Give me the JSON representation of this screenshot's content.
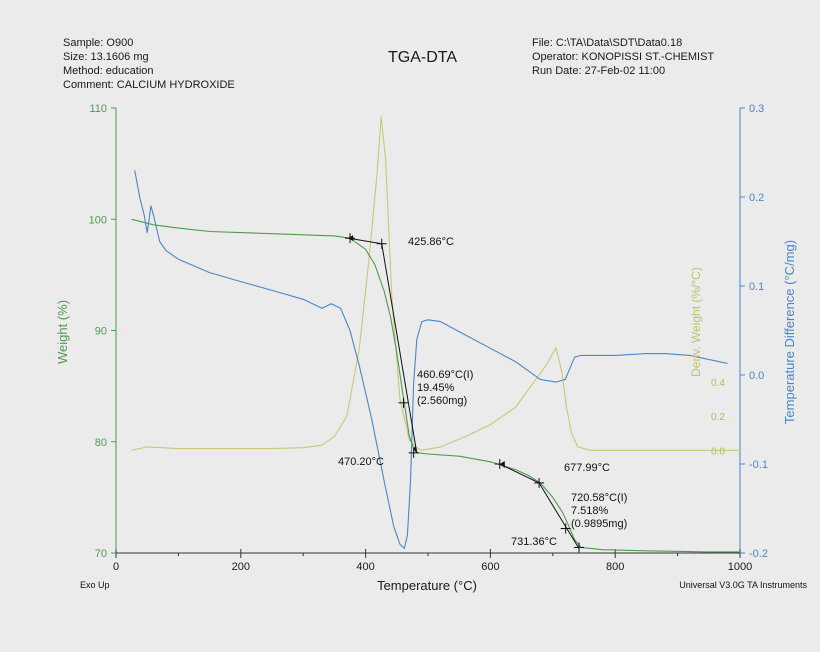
{
  "header": {
    "sample": "Sample: O900",
    "size": "Size:   13.1606 mg",
    "method": "Method: education",
    "comment": "Comment: CALCIUM HYDROXIDE",
    "title": "TGA-DTA",
    "file": "File: C:\\TA\\Data\\SDT\\Data0.18",
    "operator": "Operator: KONOPISSI ST.-CHEMIST",
    "run_date": "Run Date: 27-Feb-02 11:00"
  },
  "footer": {
    "exo_up": "Exo Up",
    "instrument": "Universal V3.0G TA Instruments"
  },
  "colors": {
    "weight": "#4f9a4f",
    "temp_diff": "#4a86c8",
    "deriv_weight": "#c8c878",
    "annotation": "#111111"
  },
  "chart_data": {
    "type": "line",
    "title": "TGA-DTA",
    "xlabel": "Temperature (°C)",
    "ylabel_left": "Weight (%)",
    "ylabel_right": "Temperature Difference (°C/mg)",
    "ylabel_deriv": "Deriv. Weight (%/°C)",
    "xlim": [
      0,
      1000
    ],
    "ylim_left": [
      70,
      110
    ],
    "ylim_right": [
      -0.2,
      0.3
    ],
    "ylim_deriv": [
      -0.6,
      2.0
    ],
    "x_ticks": [
      "0",
      "200",
      "400",
      "600",
      "800",
      "1000"
    ],
    "y_ticks_left": [
      "70",
      "80",
      "90",
      "100",
      "110"
    ],
    "y_ticks_right": [
      "-0.2",
      "-0.1",
      "0.0",
      "0.1",
      "0.2",
      "0.3"
    ],
    "y_ticks_deriv": [
      "0.0",
      "0.2",
      "0.4"
    ],
    "grid": false,
    "series": [
      {
        "name": "Weight (%)",
        "axis": "left",
        "color": "#4f9a4f",
        "x": [
          25,
          60,
          100,
          150,
          200,
          250,
          300,
          350,
          375,
          400,
          415,
          430,
          440,
          450,
          460,
          470,
          478,
          485,
          500,
          550,
          600,
          640,
          660,
          680,
          700,
          715,
          725,
          735,
          745,
          780,
          850,
          950,
          1000
        ],
        "y": [
          100,
          99.5,
          99.2,
          98.9,
          98.8,
          98.7,
          98.6,
          98.5,
          98.3,
          97.3,
          95.9,
          93.5,
          91.2,
          88.0,
          84.2,
          80.5,
          79.2,
          79.0,
          78.9,
          78.7,
          78.2,
          77.5,
          77.0,
          76.3,
          75.0,
          73.7,
          72.5,
          71.2,
          70.5,
          70.3,
          70.2,
          70.1,
          70.1
        ]
      },
      {
        "name": "Temperature Difference (°C/mg)",
        "axis": "right",
        "color": "#4a86c8",
        "x": [
          30,
          38,
          45,
          50,
          53,
          56,
          60,
          70,
          80,
          100,
          150,
          200,
          250,
          300,
          330,
          345,
          360,
          375,
          390,
          410,
          430,
          445,
          455,
          462,
          467,
          472,
          477,
          482,
          490,
          500,
          520,
          560,
          600,
          640,
          680,
          705,
          720,
          735,
          745,
          760,
          800,
          850,
          880,
          920,
          960,
          980
        ],
        "y": [
          0.23,
          0.2,
          0.18,
          0.16,
          0.175,
          0.19,
          0.18,
          0.15,
          0.14,
          0.13,
          0.115,
          0.105,
          0.095,
          0.085,
          0.075,
          0.08,
          0.075,
          0.05,
          0.01,
          -0.05,
          -0.12,
          -0.17,
          -0.19,
          -0.195,
          -0.18,
          -0.12,
          -0.01,
          0.04,
          0.06,
          0.062,
          0.06,
          0.045,
          0.03,
          0.015,
          -0.005,
          -0.008,
          -0.005,
          0.02,
          0.022,
          0.022,
          0.022,
          0.024,
          0.024,
          0.022,
          0.016,
          0.013
        ]
      },
      {
        "name": "Deriv. Weight (%/°C)",
        "axis": "deriv",
        "color": "#c8c878",
        "x": [
          25,
          50,
          100,
          150,
          200,
          250,
          300,
          330,
          350,
          370,
          390,
          405,
          418,
          425,
          432,
          442,
          455,
          470,
          480,
          490,
          520,
          560,
          600,
          640,
          670,
          690,
          705,
          715,
          722,
          730,
          740,
          760,
          800,
          900,
          1000
        ],
        "y": [
          0.0,
          0.02,
          0.01,
          0.01,
          0.01,
          0.01,
          0.015,
          0.03,
          0.08,
          0.2,
          0.6,
          1.1,
          1.6,
          1.95,
          1.7,
          0.9,
          0.3,
          0.06,
          0.02,
          0.0,
          0.02,
          0.08,
          0.15,
          0.25,
          0.4,
          0.5,
          0.6,
          0.45,
          0.25,
          0.1,
          0.02,
          0.0,
          0.0,
          0.0,
          0.0
        ]
      }
    ],
    "annotations": [
      {
        "text": "425.86°C",
        "x": 425.86,
        "axis_value": 98.2
      },
      {
        "text": "460.69°C(I)",
        "x": 460.69,
        "axis_value": 83.5
      },
      {
        "text": "19.45%",
        "x": 460.69,
        "axis_value": 83.5
      },
      {
        "text": "(2.560mg)",
        "x": 460.69,
        "axis_value": 83.5
      },
      {
        "text": "470.20°C",
        "x": 470.2,
        "axis_value": 79.2
      },
      {
        "text": "677.99°C",
        "x": 677.99,
        "axis_value": 76.3
      },
      {
        "text": "720.58°C(I)",
        "x": 720.58,
        "axis_value": 73.5
      },
      {
        "text": "7.518%",
        "x": 720.58,
        "axis_value": 73.5
      },
      {
        "text": "(0.9895mg)",
        "x": 720.58,
        "axis_value": 73.5
      },
      {
        "text": "731.36°C",
        "x": 731.36,
        "axis_value": 71.2
      }
    ]
  }
}
